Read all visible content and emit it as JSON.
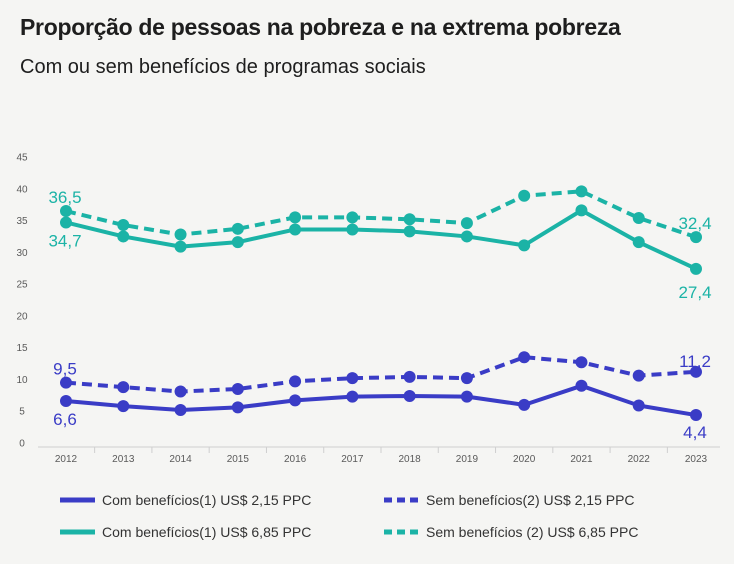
{
  "chart_data": {
    "type": "line",
    "title": "Proporção de pessoas na pobreza e na extrema pobreza",
    "subtitle": "Com ou sem benefícios de programas sociais",
    "categories": [
      "2012",
      "2013",
      "2014",
      "2015",
      "2016",
      "2017",
      "2018",
      "2019",
      "2020",
      "2021",
      "2022",
      "2023"
    ],
    "yticks": [
      "0",
      "5",
      "10",
      "15",
      "20",
      "25",
      "30",
      "35",
      "40",
      "45"
    ],
    "ylim": [
      0,
      45
    ],
    "grid": false,
    "colors": {
      "purple": "#3a3cc6",
      "teal": "#1bb3a6"
    },
    "series": [
      {
        "name": "Com benefícios(1)  US$ 2,15 PPC",
        "color": "#3a3cc6",
        "dashed": false,
        "values": [
          6.6,
          5.8,
          5.2,
          5.6,
          6.7,
          7.3,
          7.4,
          7.3,
          6.0,
          9.0,
          5.9,
          4.4
        ],
        "first_label": "6,6",
        "last_label": "4,4"
      },
      {
        "name": "Sem benefícios(2) US$ 2,15 PPC",
        "color": "#3a3cc6",
        "dashed": true,
        "values": [
          9.5,
          8.8,
          8.1,
          8.5,
          9.7,
          10.2,
          10.4,
          10.2,
          13.5,
          12.7,
          10.6,
          11.2
        ],
        "first_label": "9,5",
        "last_label": "11,2"
      },
      {
        "name": "Com benefícios(1) US$ 6,85 PPC",
        "color": "#1bb3a6",
        "dashed": false,
        "values": [
          34.7,
          32.5,
          30.9,
          31.6,
          33.6,
          33.6,
          33.3,
          32.5,
          31.1,
          36.6,
          31.6,
          27.4
        ],
        "first_label": "34,7",
        "last_label": "27,4"
      },
      {
        "name": "Sem benefícios (2) US$ 6,85 PPC",
        "color": "#1bb3a6",
        "dashed": true,
        "values": [
          36.5,
          34.3,
          32.8,
          33.7,
          35.5,
          35.5,
          35.2,
          34.6,
          38.9,
          39.6,
          35.4,
          32.4
        ],
        "first_label": "36,5",
        "last_label": "32,4"
      }
    ]
  }
}
